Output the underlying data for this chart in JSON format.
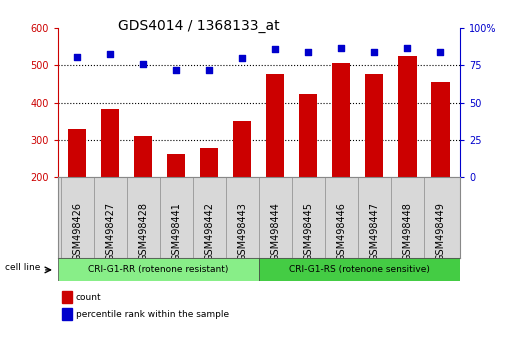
{
  "title": "GDS4014 / 1368133_at",
  "categories": [
    "GSM498426",
    "GSM498427",
    "GSM498428",
    "GSM498441",
    "GSM498442",
    "GSM498443",
    "GSM498444",
    "GSM498445",
    "GSM498446",
    "GSM498447",
    "GSM498448",
    "GSM498449"
  ],
  "counts": [
    330,
    382,
    310,
    262,
    278,
    350,
    476,
    422,
    506,
    478,
    526,
    455
  ],
  "percentile_ranks": [
    81,
    83,
    76,
    72,
    72,
    80,
    86,
    84,
    87,
    84,
    87,
    84
  ],
  "bar_color": "#cc0000",
  "dot_color": "#0000cc",
  "group1_label": "CRI-G1-RR (rotenone resistant)",
  "group2_label": "CRI-G1-RS (rotenone sensitive)",
  "group1_color": "#88ee88",
  "group2_color": "#44cc44",
  "ylim_left": [
    200,
    600
  ],
  "ylim_right": [
    0,
    100
  ],
  "yticks_left": [
    200,
    300,
    400,
    500,
    600
  ],
  "yticks_right": [
    0,
    25,
    50,
    75,
    100
  ],
  "legend_count_label": "count",
  "legend_pct_label": "percentile rank within the sample",
  "cell_line_label": "cell line",
  "plot_bg_color": "#ffffff",
  "title_fontsize": 10,
  "tick_fontsize": 7,
  "label_fontsize": 7
}
